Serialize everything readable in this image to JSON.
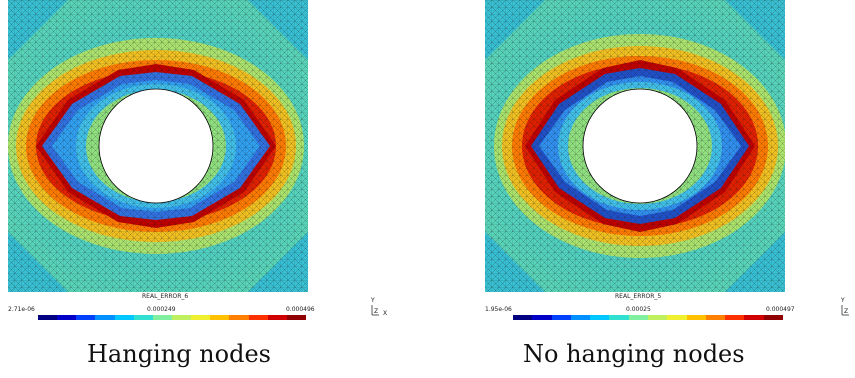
{
  "panels": [
    {
      "field_name": "REAL_ERROR_6",
      "min": "2.71e-06",
      "mid": "0.000249",
      "max": "0.000496",
      "caption": "Hanging nodes"
    },
    {
      "field_name": "REAL_ERROR_5",
      "min": "1.95e-06",
      "mid": "0.00025",
      "max": "0.000497",
      "caption": "No hanging nodes"
    }
  ],
  "axes": {
    "y": "Y",
    "z": "Z",
    "x": "X"
  },
  "colormap": [
    "#000080",
    "#0000c8",
    "#0040ff",
    "#0090ff",
    "#00c8ff",
    "#30e0d0",
    "#80f0a0",
    "#c0f060",
    "#f0f030",
    "#ffc000",
    "#ff8000",
    "#ff3000",
    "#d00000",
    "#900000"
  ]
}
